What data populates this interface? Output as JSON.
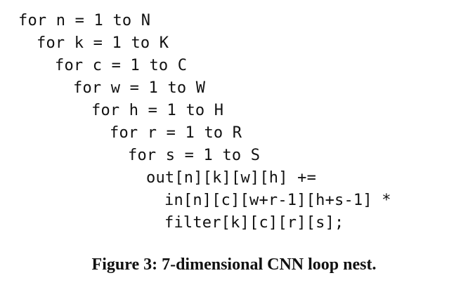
{
  "code_lines": [
    "for n = 1 to N",
    "for k = 1 to K",
    "for c = 1 to C",
    "for w = 1 to W",
    "for h = 1 to H",
    "for r = 1 to R",
    "for s = 1 to S",
    "out[n][k][w][h] +=",
    "in[n][c][w+r-1][h+s-1] *",
    "filter[k][c][r][s];"
  ],
  "caption": "Figure 3: 7-dimensional CNN loop nest."
}
